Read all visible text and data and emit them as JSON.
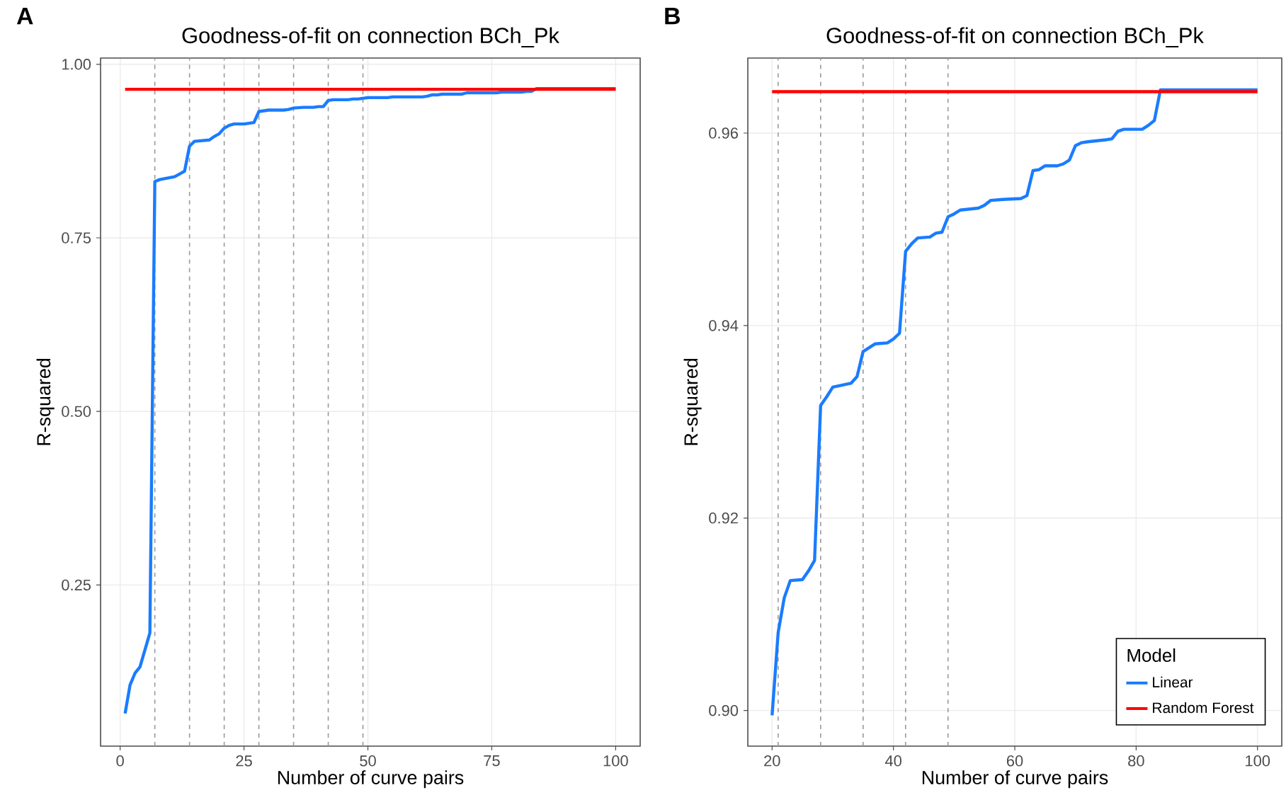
{
  "chart_data": [
    {
      "type": "line",
      "title": "Goodness-of-fit on connection BCh_Pk",
      "xlabel": "Number of curve pairs",
      "ylabel": "R-squared",
      "annotations": [
        "A"
      ],
      "xlim": [
        -3.95,
        104.95
      ],
      "ylim": [
        0.018,
        1.009
      ],
      "xticks": [
        0,
        25,
        50,
        75,
        100
      ],
      "yticks": [
        {
          "value": 0.25,
          "label": "0.25"
        },
        {
          "value": 0.5,
          "label": "0.50"
        },
        {
          "value": 0.75,
          "label": "0.75"
        },
        {
          "value": 1,
          "label": "1.00"
        }
      ],
      "grid": true,
      "legend": false,
      "line_style": "solid",
      "ref_lines": [
        {
          "axis": "x",
          "value": 7,
          "color": "#999999",
          "line_style": "dashed"
        },
        {
          "axis": "x",
          "value": 14,
          "color": "#999999",
          "line_style": "dashed"
        },
        {
          "axis": "x",
          "value": 21,
          "color": "#999999",
          "line_style": "dashed"
        },
        {
          "axis": "x",
          "value": 28,
          "color": "#999999",
          "line_style": "dashed"
        },
        {
          "axis": "x",
          "value": 35,
          "color": "#999999",
          "line_style": "dashed"
        },
        {
          "axis": "x",
          "value": 42,
          "color": "#999999",
          "line_style": "dashed"
        },
        {
          "axis": "x",
          "value": 49,
          "color": "#999999",
          "line_style": "dashed"
        }
      ],
      "series": [
        {
          "color": "#1a7cff",
          "x": [
            1,
            2,
            3,
            4,
            6,
            7,
            8,
            11,
            13,
            14,
            15,
            18,
            19,
            20,
            21,
            22,
            23,
            25,
            26,
            27,
            28,
            29,
            30,
            33,
            34,
            35,
            37,
            39,
            40,
            41,
            42,
            43,
            44,
            46,
            47,
            48,
            49,
            50,
            51,
            54,
            55,
            56,
            58,
            61,
            62,
            63,
            64,
            65,
            67,
            68,
            69,
            70,
            71,
            72,
            75,
            76,
            77,
            78,
            81,
            82,
            83,
            84,
            100
          ],
          "values": [
            0.065,
            0.106,
            0.123,
            0.132,
            0.181,
            0.831,
            0.834,
            0.838,
            0.846,
            0.882,
            0.889,
            0.891,
            0.896,
            0.9,
            0.908,
            0.912,
            0.914,
            0.914,
            0.915,
            0.916,
            0.932,
            0.933,
            0.934,
            0.934,
            0.935,
            0.937,
            0.938,
            0.938,
            0.939,
            0.939,
            0.948,
            0.949,
            0.949,
            0.949,
            0.95,
            0.95,
            0.951,
            0.952,
            0.952,
            0.952,
            0.953,
            0.953,
            0.953,
            0.953,
            0.954,
            0.956,
            0.956,
            0.957,
            0.957,
            0.957,
            0.957,
            0.959,
            0.959,
            0.959,
            0.959,
            0.959,
            0.96,
            0.96,
            0.96,
            0.961,
            0.961,
            0.965,
            0.965
          ]
        },
        {
          "color": "#ff0000",
          "x": [
            1,
            100
          ],
          "values": [
            0.964,
            0.964
          ]
        }
      ]
    },
    {
      "type": "line",
      "title": "Goodness-of-fit on connection BCh_Pk",
      "xlabel": "Number of curve pairs",
      "ylabel": "R-squared",
      "annotations": [
        "B"
      ],
      "legend_title": "Model",
      "xlim": [
        16,
        104
      ],
      "ylim": [
        0.8963,
        0.9678
      ],
      "xticks": [
        20,
        40,
        60,
        80,
        100
      ],
      "yticks": [
        {
          "value": 0.9,
          "label": "0.90"
        },
        0.92,
        0.94,
        0.96
      ],
      "grid": true,
      "legend": "bottom right",
      "line_style": "solid",
      "ref_lines": [
        {
          "axis": "x",
          "value": 21,
          "color": "#999999",
          "line_style": "dashed"
        },
        {
          "axis": "x",
          "value": 28,
          "color": "#999999",
          "line_style": "dashed"
        },
        {
          "axis": "x",
          "value": 35,
          "color": "#999999",
          "line_style": "dashed"
        },
        {
          "axis": "x",
          "value": 42,
          "color": "#999999",
          "line_style": "dashed"
        },
        {
          "axis": "x",
          "value": 49,
          "color": "#999999",
          "line_style": "dashed"
        }
      ],
      "series": [
        {
          "name": "Linear",
          "color": "#1a7cff",
          "x": [
            20,
            21,
            22,
            23,
            25,
            26,
            27,
            28,
            29,
            30,
            33,
            34,
            35,
            37,
            39,
            40,
            41,
            42,
            43,
            44,
            46,
            47,
            48,
            49,
            50,
            51,
            54,
            55,
            56,
            58,
            61,
            62,
            63,
            64,
            65,
            67,
            68,
            69,
            70,
            71,
            72,
            75,
            76,
            77,
            78,
            81,
            82,
            83,
            84,
            100
          ],
          "values": [
            0.8995,
            0.9081,
            0.9117,
            0.9135,
            0.9136,
            0.9145,
            0.9156,
            0.9317,
            0.9326,
            0.9336,
            0.934,
            0.9347,
            0.9373,
            0.9381,
            0.9382,
            0.9386,
            0.9392,
            0.9477,
            0.9485,
            0.9491,
            0.9492,
            0.9496,
            0.9497,
            0.9513,
            0.9516,
            0.952,
            0.9522,
            0.9525,
            0.953,
            0.9531,
            0.9532,
            0.9535,
            0.9561,
            0.9562,
            0.9566,
            0.9566,
            0.9568,
            0.9572,
            0.9587,
            0.959,
            0.9591,
            0.9593,
            0.9594,
            0.9602,
            0.9604,
            0.9604,
            0.9608,
            0.9613,
            0.9645,
            0.9645
          ]
        },
        {
          "name": "Random Forest",
          "color": "#ff0000",
          "x": [
            20,
            100
          ],
          "values": [
            0.9643,
            0.9643
          ]
        }
      ]
    }
  ]
}
